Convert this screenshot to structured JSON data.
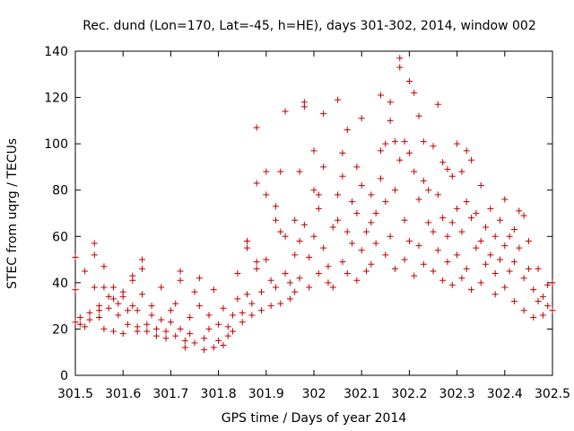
{
  "chart_data": {
    "type": "scatter",
    "title": "Rec. dund (Lon=170, Lat=-45, h=HE), days 301-302, 2014, window 002",
    "xlabel": "GPS time / Days of year 2014",
    "ylabel": "STEC from uqrg / TECUs",
    "xlim": [
      301.5,
      302.5
    ],
    "ylim": [
      0,
      140
    ],
    "xticks": [
      301.5,
      301.6,
      301.7,
      301.8,
      301.9,
      302,
      302.1,
      302.2,
      302.3,
      302.4,
      302.5
    ],
    "xtick_labels": [
      "301.5",
      "301.6",
      "301.7",
      "301.8",
      "301.9",
      "302",
      "302.1",
      "302.2",
      "302.3",
      "302.4",
      "302.5"
    ],
    "yticks": [
      0,
      20,
      40,
      60,
      80,
      100,
      120,
      140
    ],
    "ytick_labels": [
      "0",
      "20",
      "40",
      "60",
      "80",
      "100",
      "120",
      "140"
    ],
    "grid": false,
    "marker": "+",
    "color": "#c00000",
    "series": [
      {
        "name": "STEC",
        "points": [
          [
            301.5,
            51
          ],
          [
            301.5,
            23
          ],
          [
            301.5,
            37
          ],
          [
            301.51,
            22
          ],
          [
            301.51,
            25
          ],
          [
            301.52,
            45
          ],
          [
            301.52,
            21
          ],
          [
            301.53,
            27
          ],
          [
            301.53,
            24
          ],
          [
            301.54,
            57
          ],
          [
            301.54,
            52
          ],
          [
            301.54,
            38
          ],
          [
            301.55,
            25
          ],
          [
            301.55,
            28
          ],
          [
            301.55,
            30
          ],
          [
            301.56,
            20
          ],
          [
            301.56,
            47
          ],
          [
            301.56,
            38
          ],
          [
            301.57,
            29
          ],
          [
            301.57,
            34
          ],
          [
            301.58,
            19
          ],
          [
            301.58,
            33
          ],
          [
            301.58,
            38
          ],
          [
            301.59,
            31
          ],
          [
            301.59,
            26
          ],
          [
            301.6,
            18
          ],
          [
            301.6,
            36
          ],
          [
            301.6,
            34
          ],
          [
            301.61,
            22
          ],
          [
            301.61,
            28
          ],
          [
            301.62,
            30
          ],
          [
            301.62,
            43
          ],
          [
            301.62,
            41
          ],
          [
            301.63,
            19
          ],
          [
            301.63,
            21
          ],
          [
            301.63,
            28
          ],
          [
            301.64,
            50
          ],
          [
            301.64,
            46
          ],
          [
            301.64,
            35
          ],
          [
            301.65,
            19
          ],
          [
            301.65,
            22
          ],
          [
            301.66,
            26
          ],
          [
            301.66,
            30
          ],
          [
            301.67,
            17
          ],
          [
            301.67,
            20
          ],
          [
            301.68,
            24
          ],
          [
            301.68,
            38
          ],
          [
            301.69,
            16
          ],
          [
            301.69,
            19
          ],
          [
            301.7,
            23
          ],
          [
            301.7,
            28
          ],
          [
            301.71,
            31
          ],
          [
            301.71,
            17
          ],
          [
            301.72,
            20
          ],
          [
            301.72,
            45
          ],
          [
            301.72,
            41
          ],
          [
            301.73,
            15
          ],
          [
            301.73,
            12
          ],
          [
            301.74,
            18
          ],
          [
            301.74,
            25
          ],
          [
            301.75,
            36
          ],
          [
            301.75,
            14
          ],
          [
            301.76,
            30
          ],
          [
            301.76,
            42
          ],
          [
            301.77,
            11
          ],
          [
            301.77,
            16
          ],
          [
            301.78,
            20
          ],
          [
            301.78,
            26
          ],
          [
            301.79,
            37
          ],
          [
            301.79,
            12
          ],
          [
            301.8,
            15
          ],
          [
            301.8,
            22
          ],
          [
            301.81,
            13
          ],
          [
            301.81,
            29
          ],
          [
            301.82,
            17
          ],
          [
            301.82,
            21
          ],
          [
            301.83,
            26
          ],
          [
            301.83,
            19
          ],
          [
            301.84,
            33
          ],
          [
            301.84,
            44
          ],
          [
            301.85,
            23
          ],
          [
            301.85,
            27
          ],
          [
            301.86,
            58
          ],
          [
            301.86,
            55
          ],
          [
            301.86,
            35
          ],
          [
            301.87,
            26
          ],
          [
            301.87,
            31
          ],
          [
            301.88,
            107
          ],
          [
            301.88,
            83
          ],
          [
            301.88,
            49
          ],
          [
            301.88,
            46
          ],
          [
            301.89,
            28
          ],
          [
            301.89,
            36
          ],
          [
            301.9,
            88
          ],
          [
            301.9,
            78
          ],
          [
            301.9,
            50
          ],
          [
            301.91,
            41
          ],
          [
            301.91,
            30
          ],
          [
            301.92,
            73
          ],
          [
            301.92,
            67
          ],
          [
            301.92,
            38
          ],
          [
            301.93,
            88
          ],
          [
            301.93,
            62
          ],
          [
            301.93,
            31
          ],
          [
            301.94,
            114
          ],
          [
            301.94,
            60
          ],
          [
            301.94,
            44
          ],
          [
            301.95,
            40
          ],
          [
            301.95,
            33
          ],
          [
            301.96,
            67
          ],
          [
            301.96,
            52
          ],
          [
            301.96,
            36
          ],
          [
            301.97,
            88
          ],
          [
            301.97,
            58
          ],
          [
            301.97,
            42
          ],
          [
            301.98,
            118
          ],
          [
            301.98,
            116
          ],
          [
            301.98,
            65
          ],
          [
            301.99,
            51
          ],
          [
            301.99,
            38
          ],
          [
            302.0,
            97
          ],
          [
            302.0,
            80
          ],
          [
            302.0,
            60
          ],
          [
            302.01,
            78
          ],
          [
            302.01,
            72
          ],
          [
            302.01,
            44
          ],
          [
            302.02,
            90
          ],
          [
            302.02,
            113
          ],
          [
            302.02,
            55
          ],
          [
            302.03,
            40
          ],
          [
            302.03,
            47
          ],
          [
            302.04,
            64
          ],
          [
            302.04,
            38
          ],
          [
            302.05,
            119
          ],
          [
            302.05,
            78
          ],
          [
            302.05,
            67
          ],
          [
            302.06,
            96
          ],
          [
            302.06,
            86
          ],
          [
            302.06,
            49
          ],
          [
            302.07,
            106
          ],
          [
            302.07,
            62
          ],
          [
            302.07,
            44
          ],
          [
            302.08,
            75
          ],
          [
            302.08,
            57
          ],
          [
            302.09,
            90
          ],
          [
            302.09,
            70
          ],
          [
            302.09,
            41
          ],
          [
            302.1,
            111
          ],
          [
            302.1,
            82
          ],
          [
            302.1,
            54
          ],
          [
            302.11,
            62
          ],
          [
            302.11,
            45
          ],
          [
            302.12,
            78
          ],
          [
            302.12,
            66
          ],
          [
            302.12,
            48
          ],
          [
            302.13,
            70
          ],
          [
            302.13,
            57
          ],
          [
            302.14,
            121
          ],
          [
            302.14,
            97
          ],
          [
            302.14,
            85
          ],
          [
            302.15,
            100
          ],
          [
            302.15,
            75
          ],
          [
            302.15,
            52
          ],
          [
            302.16,
            118
          ],
          [
            302.16,
            110
          ],
          [
            302.16,
            60
          ],
          [
            302.17,
            101
          ],
          [
            302.17,
            80
          ],
          [
            302.17,
            46
          ],
          [
            302.18,
            137
          ],
          [
            302.18,
            133
          ],
          [
            302.18,
            93
          ],
          [
            302.19,
            101
          ],
          [
            302.19,
            67
          ],
          [
            302.19,
            50
          ],
          [
            302.2,
            127
          ],
          [
            302.2,
            96
          ],
          [
            302.2,
            58
          ],
          [
            302.21,
            122
          ],
          [
            302.21,
            88
          ],
          [
            302.21,
            43
          ],
          [
            302.22,
            112
          ],
          [
            302.22,
            76
          ],
          [
            302.22,
            56
          ],
          [
            302.23,
            101
          ],
          [
            302.23,
            84
          ],
          [
            302.23,
            48
          ],
          [
            302.24,
            80
          ],
          [
            302.24,
            66
          ],
          [
            302.25,
            99
          ],
          [
            302.25,
            62
          ],
          [
            302.25,
            45
          ],
          [
            302.26,
            117
          ],
          [
            302.26,
            78
          ],
          [
            302.26,
            54
          ],
          [
            302.27,
            92
          ],
          [
            302.27,
            68
          ],
          [
            302.27,
            41
          ],
          [
            302.28,
            89
          ],
          [
            302.28,
            60
          ],
          [
            302.28,
            49
          ],
          [
            302.29,
            86
          ],
          [
            302.29,
            66
          ],
          [
            302.29,
            39
          ],
          [
            302.3,
            100
          ],
          [
            302.3,
            72
          ],
          [
            302.3,
            52
          ],
          [
            302.31,
            88
          ],
          [
            302.31,
            62
          ],
          [
            302.31,
            42
          ],
          [
            302.32,
            97
          ],
          [
            302.32,
            75
          ],
          [
            302.32,
            46
          ],
          [
            302.33,
            93
          ],
          [
            302.33,
            68
          ],
          [
            302.33,
            37
          ],
          [
            302.34,
            70
          ],
          [
            302.34,
            55
          ],
          [
            302.35,
            82
          ],
          [
            302.35,
            58
          ],
          [
            302.35,
            40
          ],
          [
            302.36,
            64
          ],
          [
            302.36,
            48
          ],
          [
            302.37,
            72
          ],
          [
            302.37,
            52
          ],
          [
            302.38,
            60
          ],
          [
            302.38,
            44
          ],
          [
            302.38,
            35
          ],
          [
            302.39,
            67
          ],
          [
            302.39,
            50
          ],
          [
            302.4,
            76
          ],
          [
            302.4,
            56
          ],
          [
            302.4,
            38
          ],
          [
            302.41,
            60
          ],
          [
            302.41,
            45
          ],
          [
            302.42,
            63
          ],
          [
            302.42,
            49
          ],
          [
            302.42,
            32
          ],
          [
            302.43,
            71
          ],
          [
            302.43,
            55
          ],
          [
            302.44,
            69
          ],
          [
            302.44,
            42
          ],
          [
            302.44,
            28
          ],
          [
            302.45,
            58
          ],
          [
            302.45,
            46
          ],
          [
            302.46,
            37
          ],
          [
            302.46,
            25
          ],
          [
            302.47,
            46
          ],
          [
            302.47,
            32
          ],
          [
            302.48,
            34
          ],
          [
            302.48,
            26
          ],
          [
            302.49,
            39
          ],
          [
            302.49,
            30
          ],
          [
            302.5,
            40
          ],
          [
            302.5,
            28
          ]
        ]
      }
    ]
  }
}
